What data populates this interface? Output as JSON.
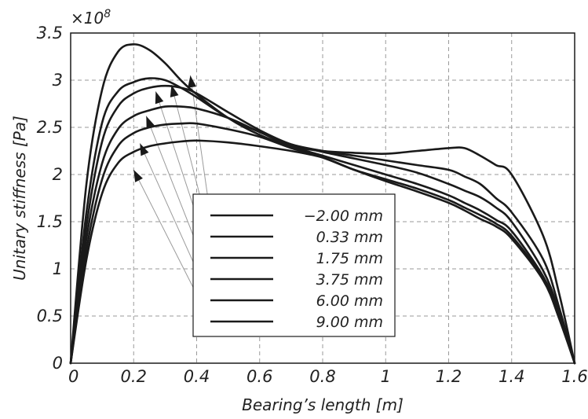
{
  "chart_data": {
    "type": "line",
    "xlabel": "Bearing’s length [m]",
    "ylabel": "Unitary stiffness [Pa]",
    "y_multiplier": "×10",
    "y_multiplier_exp": "8",
    "xlim": [
      0,
      1.6
    ],
    "ylim": [
      0,
      3.5
    ],
    "x_ticks": [
      "0",
      "0.2",
      "0.4",
      "0.6",
      "0.8",
      "1",
      "1.2",
      "1.4",
      "1.6"
    ],
    "y_ticks": [
      "0",
      "0.5",
      "1",
      "1.5",
      "2",
      "2.5",
      "3",
      "3.5"
    ],
    "grid": true,
    "legend_position": "center",
    "x": [
      0,
      0.05,
      0.1,
      0.15,
      0.2,
      0.25,
      0.3,
      0.35,
      0.4,
      0.5,
      0.6,
      0.7,
      0.8,
      0.9,
      1.0,
      1.1,
      1.2,
      1.25,
      1.3,
      1.35,
      1.4,
      1.5,
      1.55,
      1.6
    ],
    "series": [
      {
        "name": "−2.00 mm",
        "values": [
          0,
          1.9,
          2.9,
          3.3,
          3.38,
          3.32,
          3.18,
          3.0,
          2.85,
          2.6,
          2.42,
          2.3,
          2.25,
          2.23,
          2.22,
          2.25,
          2.28,
          2.28,
          2.2,
          2.1,
          2.0,
          1.35,
          0.75,
          0
        ]
      },
      {
        "name": "0.33 mm",
        "values": [
          0,
          1.6,
          2.55,
          2.88,
          2.98,
          3.02,
          3.0,
          2.92,
          2.82,
          2.6,
          2.45,
          2.32,
          2.25,
          2.2,
          2.15,
          2.1,
          2.05,
          1.98,
          1.9,
          1.75,
          1.6,
          1.1,
          0.6,
          0
        ]
      },
      {
        "name": "1.75 mm",
        "values": [
          0,
          1.45,
          2.35,
          2.72,
          2.86,
          2.92,
          2.94,
          2.92,
          2.86,
          2.66,
          2.47,
          2.32,
          2.24,
          2.17,
          2.1,
          2.02,
          1.9,
          1.83,
          1.76,
          1.65,
          1.5,
          0.98,
          0.55,
          0
        ]
      },
      {
        "name": "3.75 mm",
        "values": [
          0,
          1.32,
          2.12,
          2.48,
          2.62,
          2.68,
          2.72,
          2.72,
          2.7,
          2.6,
          2.45,
          2.3,
          2.2,
          2.1,
          2.0,
          1.9,
          1.78,
          1.7,
          1.62,
          1.52,
          1.4,
          0.92,
          0.52,
          0
        ]
      },
      {
        "name": "6.00 mm",
        "values": [
          0,
          1.2,
          1.95,
          2.3,
          2.44,
          2.5,
          2.53,
          2.54,
          2.54,
          2.48,
          2.4,
          2.28,
          2.18,
          2.05,
          1.95,
          1.85,
          1.73,
          1.65,
          1.57,
          1.48,
          1.35,
          0.9,
          0.5,
          0
        ]
      },
      {
        "name": "9.00 mm",
        "values": [
          0,
          1.1,
          1.8,
          2.12,
          2.24,
          2.3,
          2.33,
          2.35,
          2.36,
          2.34,
          2.3,
          2.25,
          2.18,
          2.05,
          1.93,
          1.82,
          1.7,
          1.62,
          1.53,
          1.45,
          1.32,
          0.88,
          0.48,
          0
        ]
      }
    ],
    "annotations": [
      {
        "series": 0,
        "x": 0.38,
        "y": 3.05
      },
      {
        "series": 1,
        "x": 0.32,
        "y": 2.95
      },
      {
        "series": 2,
        "x": 0.27,
        "y": 2.88
      },
      {
        "series": 3,
        "x": 0.24,
        "y": 2.62
      },
      {
        "series": 4,
        "x": 0.22,
        "y": 2.33
      },
      {
        "series": 5,
        "x": 0.2,
        "y": 2.05
      }
    ]
  }
}
